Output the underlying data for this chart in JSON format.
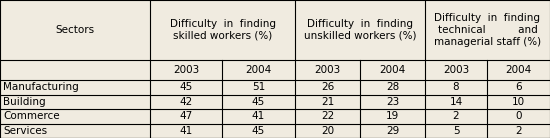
{
  "col_headers": [
    "Sectors",
    "Difficulty in finding\nskilled workers (%)",
    "Difficulty in finding\nunskilled workers (%)",
    "Difficulty in finding\ntechnical          and\nmanagerial staff (%)"
  ],
  "sub_headers": [
    "2003",
    "2004",
    "2003",
    "2004",
    "2003",
    "2004"
  ],
  "rows": [
    [
      "Manufacturing",
      "45",
      "51",
      "26",
      "28",
      "8",
      "6"
    ],
    [
      "Building",
      "42",
      "45",
      "21",
      "23",
      "14",
      "10"
    ],
    [
      "Commerce",
      "47",
      "41",
      "22",
      "19",
      "2",
      "0"
    ],
    [
      "Services",
      "41",
      "45",
      "20",
      "29",
      "5",
      "2"
    ]
  ],
  "bg_color": "#f0ebe0",
  "line_color": "#000000",
  "text_color": "#000000",
  "font_size": 7.5
}
